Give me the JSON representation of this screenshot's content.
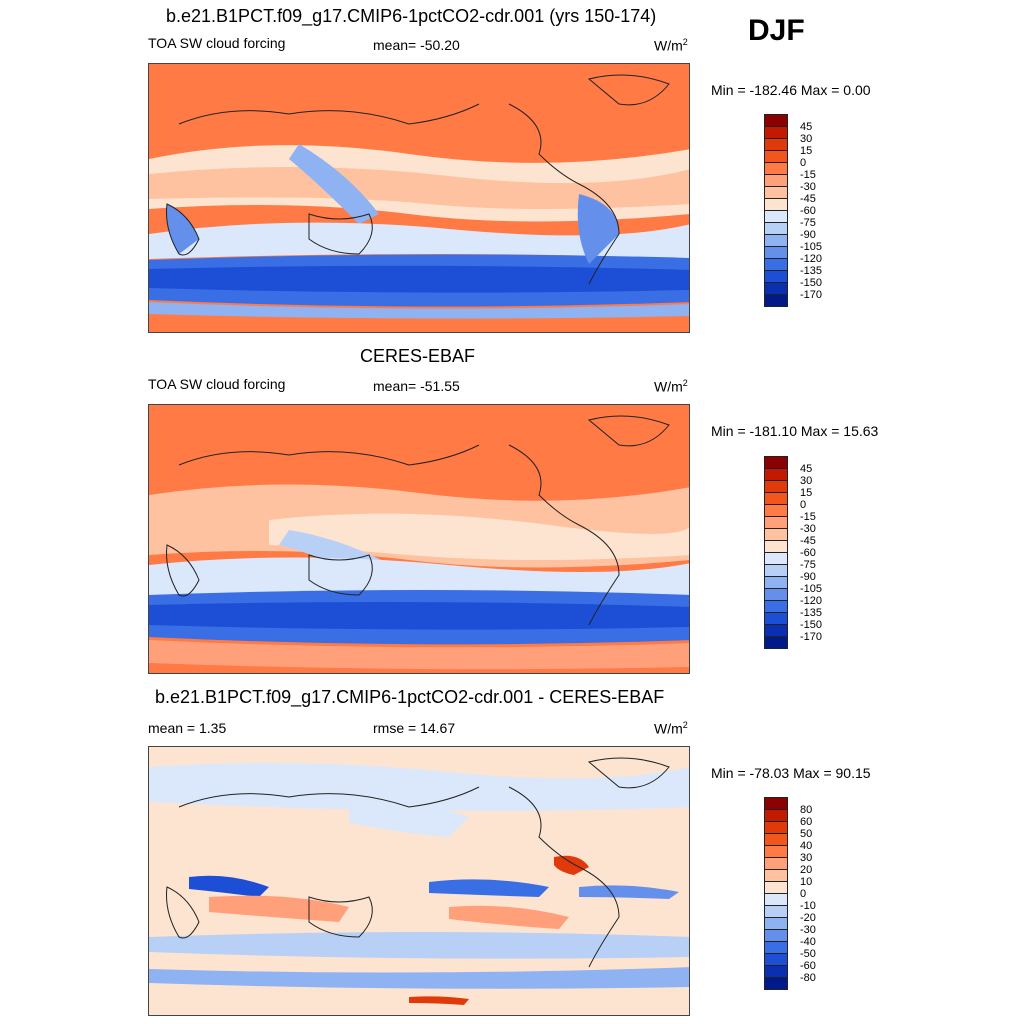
{
  "season": "DJF",
  "panels": [
    {
      "title": "b.e21.B1PCT.f09_g17.CMIP6-1pctCO2-cdr.001 (yrs 150-174)",
      "left_label": "TOA SW cloud forcing",
      "center_label": "mean= -50.20",
      "units": "W/m",
      "units_sup": "2",
      "minmax": "Min = -182.46 Max =   0.00",
      "colorbar": {
        "labels": [
          "45",
          "30",
          "15",
          "0",
          "-15",
          "-30",
          "-45",
          "-60",
          "-75",
          "-90",
          "-105",
          "-120",
          "-135",
          "-150",
          "-170"
        ],
        "colors": [
          "#8b0000",
          "#c11a00",
          "#e03a0a",
          "#f2561d",
          "#ff7a45",
          "#ffa07a",
          "#ffc2a0",
          "#fde4d0",
          "#dbe8fb",
          "#b8d0f6",
          "#8fb2f2",
          "#6490ec",
          "#3a6ee4",
          "#1c4fd6",
          "#0a2fb0",
          "#001a8a"
        ]
      }
    },
    {
      "title": "CERES-EBAF",
      "left_label": "TOA SW cloud forcing",
      "center_label": "mean= -51.55",
      "units": "W/m",
      "units_sup": "2",
      "minmax": "Min = -181.10 Max =  15.63",
      "colorbar": {
        "labels": [
          "45",
          "30",
          "15",
          "0",
          "-15",
          "-30",
          "-45",
          "-60",
          "-75",
          "-90",
          "-105",
          "-120",
          "-135",
          "-150",
          "-170"
        ],
        "colors": [
          "#8b0000",
          "#c11a00",
          "#e03a0a",
          "#f2561d",
          "#ff7a45",
          "#ffa07a",
          "#ffc2a0",
          "#fde4d0",
          "#dbe8fb",
          "#b8d0f6",
          "#8fb2f2",
          "#6490ec",
          "#3a6ee4",
          "#1c4fd6",
          "#0a2fb0",
          "#001a8a"
        ]
      }
    },
    {
      "title": "b.e21.B1PCT.f09_g17.CMIP6-1pctCO2-cdr.001 - CERES-EBAF",
      "left_label": "mean =   1.35",
      "center_label": "rmse =  14.67",
      "units": "W/m",
      "units_sup": "2",
      "minmax": "Min = -78.03 Max =  90.15",
      "colorbar": {
        "labels": [
          "80",
          "60",
          "50",
          "40",
          "30",
          "20",
          "10",
          "0",
          "-10",
          "-20",
          "-30",
          "-40",
          "-50",
          "-60",
          "-80"
        ],
        "colors": [
          "#8b0000",
          "#c11a00",
          "#e03a0a",
          "#f2561d",
          "#ff7a45",
          "#ffa07a",
          "#ffc2a0",
          "#fde4d0",
          "#dbe8fb",
          "#b8d0f6",
          "#8fb2f2",
          "#6490ec",
          "#3a6ee4",
          "#1c4fd6",
          "#0a2fb0",
          "#001a8a"
        ]
      }
    }
  ]
}
